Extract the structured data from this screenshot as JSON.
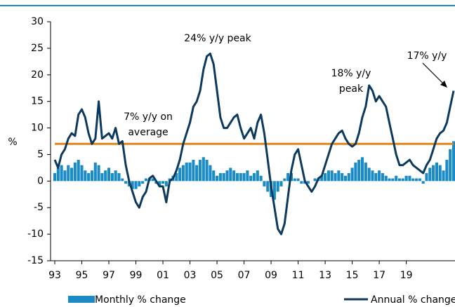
{
  "chart_data": {
    "type": "bar+line",
    "y_axis_label": "%",
    "xlim": [
      1993,
      2022.5
    ],
    "xticks": [
      {
        "value": 1993,
        "label": "93"
      },
      {
        "value": 1995,
        "label": "95"
      },
      {
        "value": 1997,
        "label": "97"
      },
      {
        "value": 1999,
        "label": "99"
      },
      {
        "value": 2001,
        "label": "01"
      },
      {
        "value": 2003,
        "label": "03"
      },
      {
        "value": 2005,
        "label": "05"
      },
      {
        "value": 2007,
        "label": "07"
      },
      {
        "value": 2009,
        "label": "09"
      },
      {
        "value": 2011,
        "label": "11"
      },
      {
        "value": 2013,
        "label": "13"
      },
      {
        "value": 2015,
        "label": "15"
      },
      {
        "value": 2017,
        "label": "17"
      },
      {
        "value": 2019,
        "label": "19"
      }
    ],
    "ylim": [
      -15,
      30
    ],
    "yticks": [
      -15,
      -10,
      -5,
      0,
      5,
      10,
      15,
      20,
      25,
      30
    ],
    "x": [
      1993,
      1993.25,
      1993.5,
      1993.75,
      1994,
      1994.25,
      1994.5,
      1994.75,
      1995,
      1995.25,
      1995.5,
      1995.75,
      1996,
      1996.25,
      1996.5,
      1996.75,
      1997,
      1997.25,
      1997.5,
      1997.75,
      1998,
      1998.25,
      1998.5,
      1998.75,
      1999,
      1999.25,
      1999.5,
      1999.75,
      2000,
      2000.25,
      2000.5,
      2000.75,
      2001,
      2001.25,
      2001.5,
      2001.75,
      2002,
      2002.25,
      2002.5,
      2002.75,
      2003,
      2003.25,
      2003.5,
      2003.75,
      2004,
      2004.25,
      2004.5,
      2004.75,
      2005,
      2005.25,
      2005.5,
      2005.75,
      2006,
      2006.25,
      2006.5,
      2006.75,
      2007,
      2007.25,
      2007.5,
      2007.75,
      2008,
      2008.25,
      2008.5,
      2008.75,
      2009,
      2009.25,
      2009.5,
      2009.75,
      2010,
      2010.25,
      2010.5,
      2010.75,
      2011,
      2011.25,
      2011.5,
      2011.75,
      2012,
      2012.25,
      2012.5,
      2012.75,
      2013,
      2013.25,
      2013.5,
      2013.75,
      2014,
      2014.25,
      2014.5,
      2014.75,
      2015,
      2015.25,
      2015.5,
      2015.75,
      2016,
      2016.25,
      2016.5,
      2016.75,
      2017,
      2017.25,
      2017.5,
      2017.75,
      2018,
      2018.25,
      2018.5,
      2018.75,
      2019,
      2019.25,
      2019.5,
      2019.75,
      2020,
      2020.25,
      2020.5,
      2020.75,
      2021,
      2021.25,
      2021.5,
      2021.75,
      2022,
      2022.25,
      2022.5
    ],
    "series": [
      {
        "name": "Monthly % change",
        "kind": "bar",
        "color": "#1b8bc6",
        "values": [
          1.5,
          2.5,
          3,
          2,
          3,
          2.5,
          3.5,
          4,
          3,
          2,
          1.5,
          2,
          3.5,
          3,
          1.5,
          2,
          2.5,
          1.5,
          2,
          1.5,
          0.5,
          -0.5,
          -1,
          -1.5,
          -1.5,
          -1,
          -0.5,
          0.5,
          0.5,
          0.5,
          -0.5,
          -1,
          -0.5,
          -1,
          0.5,
          1,
          1.5,
          2.5,
          3,
          3.5,
          3.5,
          4,
          3,
          4,
          4.5,
          4,
          3,
          2,
          1,
          1.5,
          1.5,
          2,
          2.5,
          2,
          1.5,
          1.5,
          1.5,
          2,
          1,
          1.5,
          2,
          1,
          -1,
          -2,
          -3,
          -3.5,
          -2,
          -1,
          0.5,
          1.5,
          1.5,
          0.5,
          0.5,
          -0.5,
          -0.5,
          -0.5,
          0,
          0.5,
          0.5,
          1,
          1.5,
          2,
          2,
          1.5,
          2,
          1.5,
          1,
          1.5,
          2.5,
          3.5,
          4,
          4.5,
          3.5,
          2.5,
          2,
          1.5,
          2,
          1.5,
          1,
          0.5,
          0.5,
          1,
          0.5,
          0.5,
          1,
          1,
          0.5,
          0.5,
          0.5,
          -0.5,
          1.5,
          2.5,
          3,
          3.5,
          3,
          2,
          4,
          6,
          7.5
        ]
      },
      {
        "name": "Annual % change",
        "kind": "line",
        "color": "#0d3a5c",
        "values": [
          4,
          2.5,
          5,
          6,
          8,
          9,
          8.5,
          12.5,
          13.5,
          12,
          9,
          7,
          8,
          15,
          8,
          8.5,
          9,
          8,
          10,
          7,
          7.5,
          3,
          0,
          -2,
          -4,
          -5,
          -3,
          -2,
          0.5,
          1,
          0,
          -1,
          -1,
          -4,
          0,
          0.5,
          2,
          4,
          7,
          9,
          11,
          14,
          15,
          17,
          21,
          23.5,
          24,
          22,
          17,
          12,
          10,
          10,
          11,
          12,
          12.5,
          10,
          8,
          9,
          10,
          8,
          11,
          12.5,
          9,
          4,
          -1,
          -5,
          -9,
          -10,
          -8,
          -3,
          2,
          5,
          6,
          3,
          0,
          -1,
          -2,
          -1,
          0.5,
          1,
          3,
          5,
          7,
          8,
          9,
          9.5,
          8,
          7,
          6.5,
          7,
          9,
          12,
          14,
          18,
          17,
          15,
          16,
          15,
          14,
          11,
          8,
          5,
          3,
          3,
          3.5,
          4,
          3,
          2.5,
          2,
          1.5,
          3,
          4,
          6,
          8,
          9,
          9.5,
          11,
          14,
          17
        ]
      }
    ],
    "reference_line": {
      "value": 7,
      "color": "#e0861a"
    },
    "annotations": [
      {
        "lines": [
          "24% y/y peak"
        ]
      },
      {
        "lines": [
          "18% y/y",
          "peak"
        ]
      },
      {
        "lines": [
          "7% y/y on",
          "average"
        ]
      },
      {
        "lines": [
          "17% y/y"
        ]
      }
    ]
  }
}
